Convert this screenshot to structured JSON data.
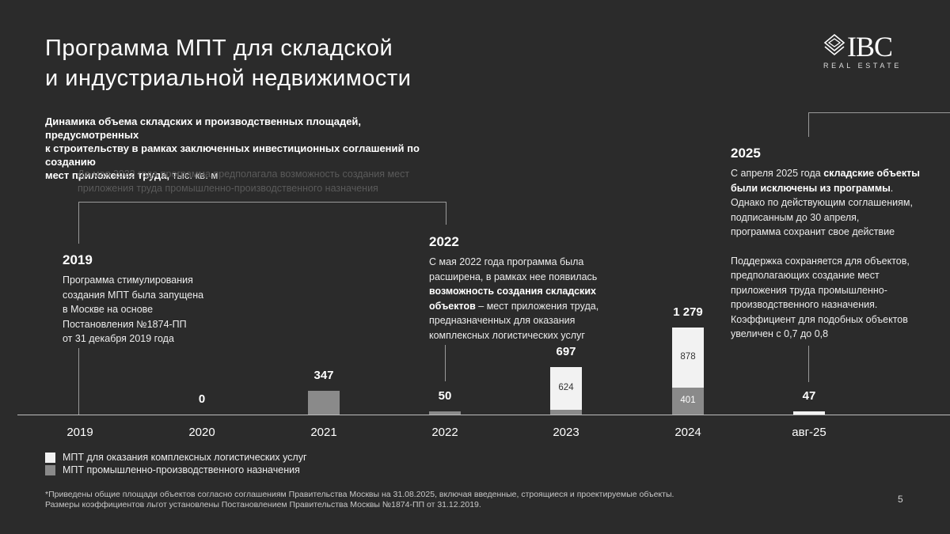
{
  "title_line1": "Программа МПТ для складской",
  "title_line2": "и индустриальной недвижимости",
  "logo": {
    "name": "IBC",
    "sub": "REAL ESTATE"
  },
  "subtitle": {
    "line1": "Динамика объема складских и производственных площадей, предусмотренных",
    "line2": "к строительству в рамках заключенных инвестиционных соглашений по созданию",
    "line3": "мест приложения труда,",
    "unit": " тыс. кв. м"
  },
  "note_2022_gray": {
    "line1": "До мая 2022 года программа предполагала возможность создания мест",
    "line2": "приложения труда промышленно-производственного назначения"
  },
  "annot_2019": {
    "year": "2019",
    "lines": [
      "Программа стимулирования",
      "создания МПТ была запущена",
      "в Москве на основе",
      "Постановления №1874-ПП",
      "от 31 декабря 2019 года"
    ]
  },
  "annot_2022": {
    "year": "2022",
    "line1": "С мая 2022 года программа была",
    "line2": "расширена, в рамках нее появилась",
    "line3_bold": "возможность создания складских",
    "line4_bold": "объектов",
    "line4_rest": " – мест приложения труда,",
    "line5": "предназначенных для оказания",
    "line6": "комплексных логистических услуг"
  },
  "annot_2025": {
    "year": "2025",
    "line1": "С апреля 2025 года ",
    "line1_bold": "складские объекты",
    "line2_bold": "были исключены из программы",
    "line2_rest": ".",
    "line3": "Однако по действующим соглашениям,",
    "line4": "подписанным до 30 апреля,",
    "line5": "программа сохранит свое действие",
    "line6": "Поддержка сохраняется для объектов,",
    "line7": "предполагающих создание мест",
    "line8": "приложения труда промышленно-",
    "line9": "производственного назначения.",
    "line10": "Коэффициент для подобных объектов",
    "line11": "увеличен с 0,7 до 0,8"
  },
  "chart_data": {
    "type": "bar",
    "stacked": true,
    "categories": [
      "2019",
      "2020",
      "2021",
      "2022",
      "2023",
      "2024",
      "авг-25"
    ],
    "series": [
      {
        "name": "МПТ промышленно-производственного назначения",
        "color": "#8a8a8a",
        "values": [
          0,
          0,
          347,
          50,
          73,
          401,
          0
        ]
      },
      {
        "name": "МПТ для оказания комплексных логистических услуг",
        "color": "#f2f2f2",
        "values": [
          0,
          0,
          0,
          0,
          624,
          878,
          47
        ]
      }
    ],
    "totals": [
      "",
      "0",
      "347",
      "50",
      "697",
      "1 279",
      "47"
    ],
    "segment_labels": {
      "2023_light": "624",
      "2024_light": "878",
      "2024_dark": "401"
    },
    "ylim": [
      0,
      1279
    ]
  },
  "legend": [
    {
      "label": "МПТ для оказания комплексных логистических услуг",
      "color": "#f2f2f2"
    },
    {
      "label": "МПТ промышленно-производственного назначения",
      "color": "#8a8a8a"
    }
  ],
  "footnote": {
    "line1": "*Приведены общие площади объектов согласно соглашениям Правительства Москвы на 31.08.2025, включая введенные, строящиеся и проектируемые объекты.",
    "line2": "Размеры коэффициентов льгот установлены Постановлением Правительства Москвы №1874-ПП от 31.12.2019."
  },
  "page_number": "5"
}
